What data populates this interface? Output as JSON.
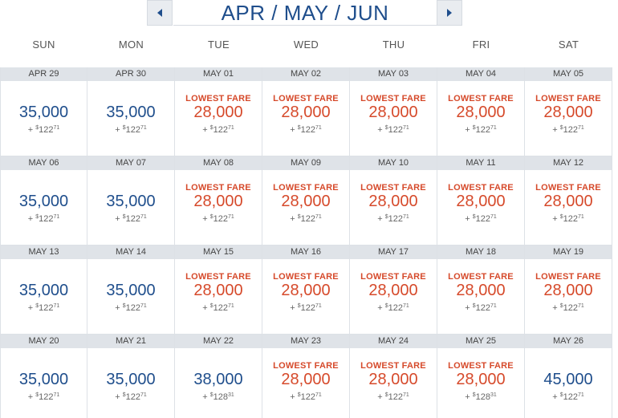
{
  "header": {
    "title": "APR / MAY / JUN",
    "prev_icon": "caret-left-icon",
    "next_icon": "caret-right-icon",
    "accent_color": "#1f4e8c"
  },
  "weekdays": [
    "SUN",
    "MON",
    "TUE",
    "WED",
    "THU",
    "FRI",
    "SAT"
  ],
  "labels": {
    "lowest_fare": "LOWEST FARE",
    "plus": "+",
    "currency": "$"
  },
  "colors": {
    "lowest": "#d64a2b",
    "regular": "#1f4e8c",
    "date_bar": "#dfe3e8"
  },
  "weeks": [
    [
      {
        "date": "APR 29",
        "miles": "35,000",
        "lowest": false,
        "tax_dollars": "122",
        "tax_cents": "71"
      },
      {
        "date": "APR 30",
        "miles": "35,000",
        "lowest": false,
        "tax_dollars": "122",
        "tax_cents": "71"
      },
      {
        "date": "MAY 01",
        "miles": "28,000",
        "lowest": true,
        "tax_dollars": "122",
        "tax_cents": "71"
      },
      {
        "date": "MAY 02",
        "miles": "28,000",
        "lowest": true,
        "tax_dollars": "122",
        "tax_cents": "71"
      },
      {
        "date": "MAY 03",
        "miles": "28,000",
        "lowest": true,
        "tax_dollars": "122",
        "tax_cents": "71"
      },
      {
        "date": "MAY 04",
        "miles": "28,000",
        "lowest": true,
        "tax_dollars": "122",
        "tax_cents": "71"
      },
      {
        "date": "MAY 05",
        "miles": "28,000",
        "lowest": true,
        "tax_dollars": "122",
        "tax_cents": "71"
      }
    ],
    [
      {
        "date": "MAY 06",
        "miles": "35,000",
        "lowest": false,
        "tax_dollars": "122",
        "tax_cents": "71"
      },
      {
        "date": "MAY 07",
        "miles": "35,000",
        "lowest": false,
        "tax_dollars": "122",
        "tax_cents": "71"
      },
      {
        "date": "MAY 08",
        "miles": "28,000",
        "lowest": true,
        "tax_dollars": "122",
        "tax_cents": "71"
      },
      {
        "date": "MAY 09",
        "miles": "28,000",
        "lowest": true,
        "tax_dollars": "122",
        "tax_cents": "71"
      },
      {
        "date": "MAY 10",
        "miles": "28,000",
        "lowest": true,
        "tax_dollars": "122",
        "tax_cents": "71"
      },
      {
        "date": "MAY 11",
        "miles": "28,000",
        "lowest": true,
        "tax_dollars": "122",
        "tax_cents": "71"
      },
      {
        "date": "MAY 12",
        "miles": "28,000",
        "lowest": true,
        "tax_dollars": "122",
        "tax_cents": "71"
      }
    ],
    [
      {
        "date": "MAY 13",
        "miles": "35,000",
        "lowest": false,
        "tax_dollars": "122",
        "tax_cents": "71"
      },
      {
        "date": "MAY 14",
        "miles": "35,000",
        "lowest": false,
        "tax_dollars": "122",
        "tax_cents": "71"
      },
      {
        "date": "MAY 15",
        "miles": "28,000",
        "lowest": true,
        "tax_dollars": "122",
        "tax_cents": "71"
      },
      {
        "date": "MAY 16",
        "miles": "28,000",
        "lowest": true,
        "tax_dollars": "122",
        "tax_cents": "71"
      },
      {
        "date": "MAY 17",
        "miles": "28,000",
        "lowest": true,
        "tax_dollars": "122",
        "tax_cents": "71"
      },
      {
        "date": "MAY 18",
        "miles": "28,000",
        "lowest": true,
        "tax_dollars": "122",
        "tax_cents": "71"
      },
      {
        "date": "MAY 19",
        "miles": "28,000",
        "lowest": true,
        "tax_dollars": "122",
        "tax_cents": "71"
      }
    ],
    [
      {
        "date": "MAY 20",
        "miles": "35,000",
        "lowest": false,
        "tax_dollars": "122",
        "tax_cents": "71"
      },
      {
        "date": "MAY 21",
        "miles": "35,000",
        "lowest": false,
        "tax_dollars": "122",
        "tax_cents": "71"
      },
      {
        "date": "MAY 22",
        "miles": "38,000",
        "lowest": false,
        "tax_dollars": "128",
        "tax_cents": "31"
      },
      {
        "date": "MAY 23",
        "miles": "28,000",
        "lowest": true,
        "tax_dollars": "122",
        "tax_cents": "71"
      },
      {
        "date": "MAY 24",
        "miles": "28,000",
        "lowest": true,
        "tax_dollars": "122",
        "tax_cents": "71"
      },
      {
        "date": "MAY 25",
        "miles": "28,000",
        "lowest": true,
        "tax_dollars": "128",
        "tax_cents": "31"
      },
      {
        "date": "MAY 26",
        "miles": "45,000",
        "lowest": false,
        "tax_dollars": "122",
        "tax_cents": "71"
      }
    ]
  ]
}
